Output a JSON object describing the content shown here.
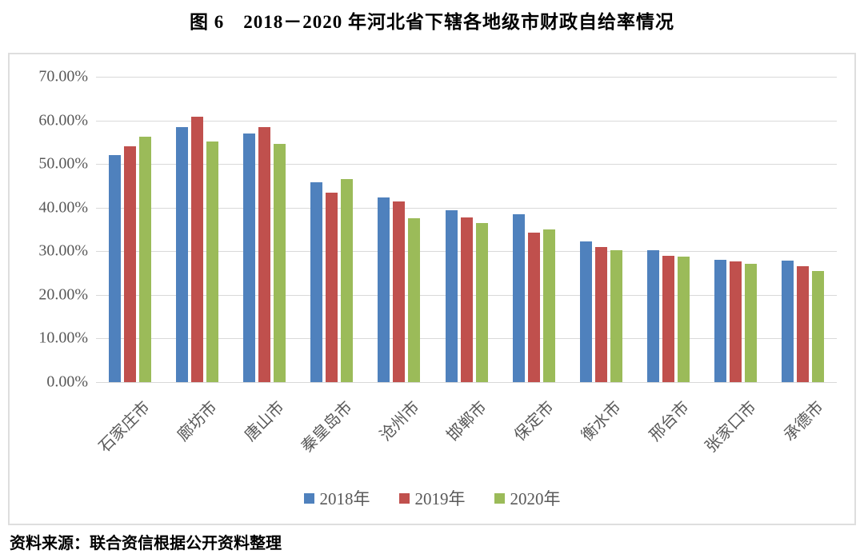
{
  "figure": {
    "title": "图 6　2018－2020 年河北省下辖各地级市财政自给率情况",
    "source_note": "资料来源：联合资信根据公开资料整理"
  },
  "chart_data": {
    "type": "bar",
    "title": "图 6　2018－2020 年河北省下辖各地级市财政自给率情况",
    "categories": [
      "石家庄市",
      "廊坊市",
      "唐山市",
      "秦皇岛市",
      "沧州市",
      "邯郸市",
      "保定市",
      "衡水市",
      "邢台市",
      "张家口市",
      "承德市"
    ],
    "series": [
      {
        "name": "2018年",
        "color": "#4F81BD",
        "values": [
          52.0,
          58.4,
          57.0,
          45.9,
          42.3,
          39.4,
          38.4,
          32.2,
          30.3,
          28.0,
          27.8
        ]
      },
      {
        "name": "2019年",
        "color": "#C0504D",
        "values": [
          54.0,
          60.8,
          58.4,
          43.4,
          41.4,
          37.7,
          34.3,
          31.0,
          29.0,
          27.6,
          26.6
        ]
      },
      {
        "name": "2020年",
        "color": "#9BBB59",
        "values": [
          56.2,
          55.2,
          54.7,
          46.5,
          37.5,
          36.5,
          35.0,
          30.3,
          28.8,
          27.1,
          25.4
        ]
      }
    ],
    "xlabel": "",
    "ylabel": "",
    "ylim": [
      0,
      70
    ],
    "ytick_step": 10,
    "yticks": [
      "0.00%",
      "10.00%",
      "20.00%",
      "30.00%",
      "40.00%",
      "50.00%",
      "60.00%",
      "70.00%"
    ],
    "unit": "percent",
    "grid": true,
    "legend_position": "bottom"
  },
  "style": {
    "grid_color": "#d9d9d9",
    "axis_text_color": "#595959",
    "frame_border_color": "#dedede",
    "series_colors": [
      "#4F81BD",
      "#C0504D",
      "#9BBB59"
    ]
  }
}
